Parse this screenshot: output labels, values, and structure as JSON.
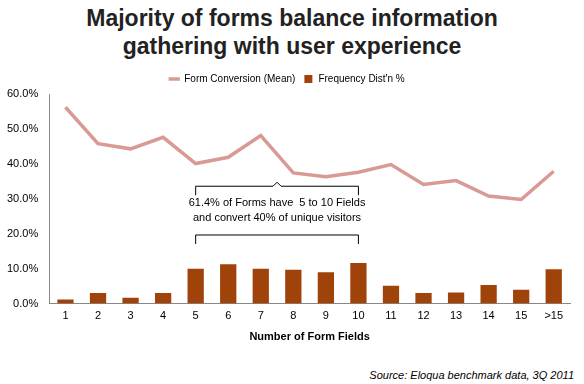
{
  "chart_data": {
    "type": "bar",
    "title": "Majority of forms balance information gathering with user experience",
    "categories": [
      "1",
      "2",
      "3",
      "4",
      "5",
      "6",
      "7",
      "8",
      "9",
      "10",
      "11",
      "12",
      "13",
      "14",
      "15",
      ">15"
    ],
    "series": [
      {
        "name": "Frequency Dist'n %",
        "type": "bar",
        "color": "#a0430a",
        "values": [
          1.2,
          3.0,
          1.7,
          3.0,
          10.0,
          11.3,
          10.0,
          9.7,
          9.0,
          11.6,
          5.1,
          3.0,
          3.2,
          5.3,
          4.0,
          9.8
        ]
      },
      {
        "name": "Form Conversion (Mean)",
        "type": "line",
        "color": "#d99a94",
        "values": [
          56.2,
          45.8,
          44.3,
          47.6,
          40.1,
          41.9,
          48.1,
          37.4,
          36.3,
          37.6,
          39.8,
          34.1,
          35.2,
          30.8,
          29.8,
          37.9
        ]
      }
    ],
    "x_label": "Number of Form Fields",
    "ylim": [
      0,
      60
    ],
    "yticks": [
      {
        "value": 0,
        "label": "0.0%"
      },
      {
        "value": 10,
        "label": "10.0%"
      },
      {
        "value": 20,
        "label": "20.0%"
      },
      {
        "value": 30,
        "label": "30.0%"
      },
      {
        "value": 40,
        "label": "40.0%"
      },
      {
        "value": 50,
        "label": "50.0%"
      },
      {
        "value": 60,
        "label": "60.0%"
      }
    ],
    "grid": false,
    "legend": "top",
    "annotations": [
      {
        "text": [
          "61.4% of Forms have  5 to 10 Fields",
          "and convert 40% of unique visitors"
        ],
        "span": [
          "5",
          "10"
        ]
      }
    ],
    "source": "Source: Eloqua benchmark data, 3Q 2011"
  }
}
